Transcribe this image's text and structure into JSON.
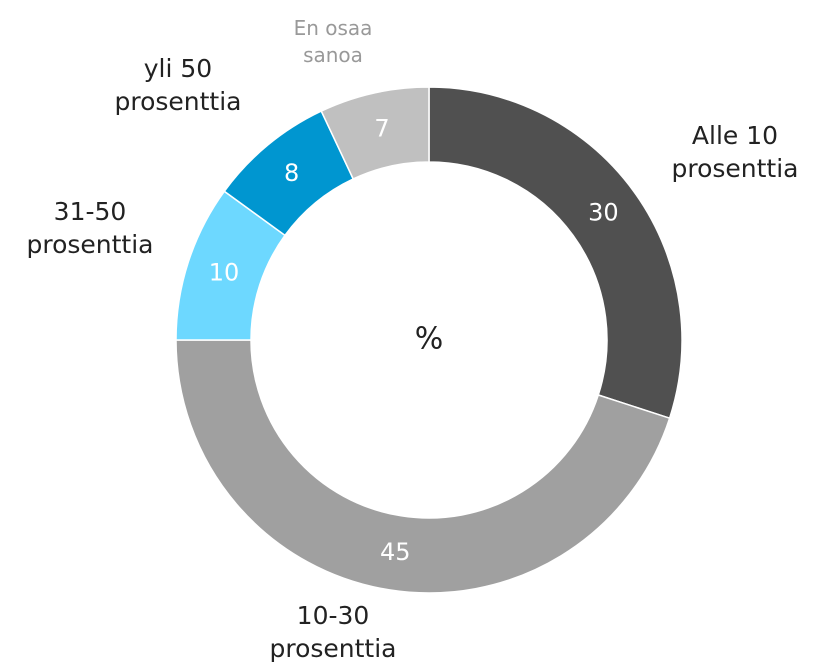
{
  "chart_data": {
    "type": "donut",
    "center_label": "%",
    "categories": [
      "Alle 10 prosenttia",
      "10-30 prosenttia",
      "31-50 prosenttia",
      "yli 50 prosenttia",
      "En osaa sanoa"
    ],
    "values": [
      30,
      45,
      10,
      8,
      7
    ],
    "colors": [
      "#505050",
      "#a0a0a0",
      "#6dd8ff",
      "#0096d0",
      "#c0c0c0"
    ]
  }
}
